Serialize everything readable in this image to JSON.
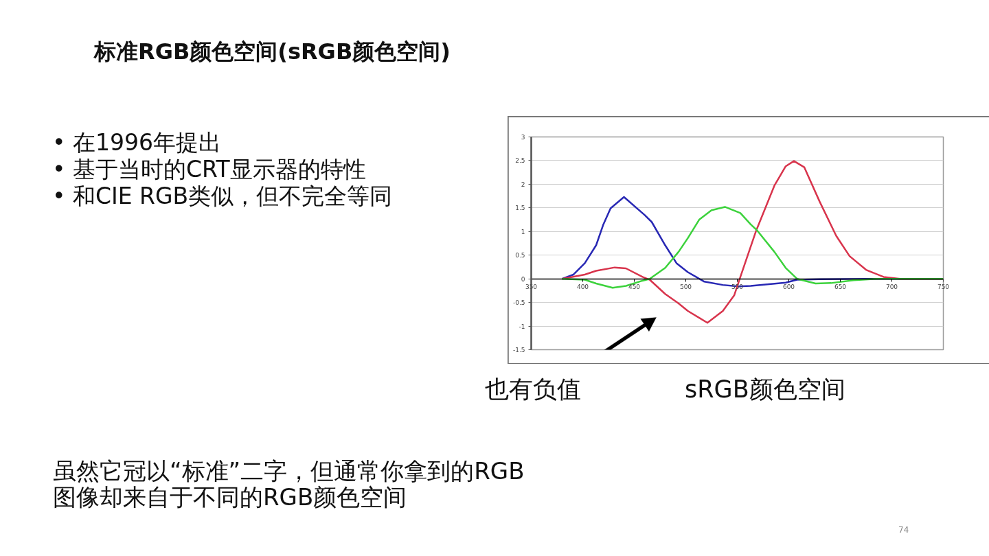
{
  "chart_data": {
    "type": "line",
    "title": "标准RGB颜色空间(sRGB颜色空间)",
    "xlim": [
      350,
      750
    ],
    "xticks": [
      350,
      400,
      450,
      500,
      550,
      600,
      650,
      700,
      750
    ],
    "ylim": [
      -1.5,
      3
    ],
    "yticks": [
      -1.5,
      -1,
      -0.5,
      0,
      0.5,
      1,
      1.5,
      2,
      2.5,
      3
    ],
    "grid": "y",
    "series": [
      {
        "color": "#2828b4",
        "x": [
          380,
          391,
          402,
          413,
          420,
          427,
          440,
          460,
          467,
          480,
          491,
          502,
          518,
          536,
          551,
          563,
          597,
          608,
          630,
          700,
          750
        ],
        "values": [
          0.0,
          0.09,
          0.33,
          0.71,
          1.15,
          1.49,
          1.73,
          1.35,
          1.2,
          0.71,
          0.33,
          0.14,
          -0.06,
          -0.13,
          -0.16,
          -0.15,
          -0.08,
          -0.02,
          -0.01,
          0.0,
          0.0
        ]
      },
      {
        "color": "#d8344c",
        "x": [
          380,
          402,
          413,
          431,
          442,
          458,
          465,
          480,
          493,
          502,
          521,
          536,
          547,
          553,
          568,
          586,
          597,
          605,
          615,
          630,
          646,
          659,
          675,
          692,
          708,
          750
        ],
        "values": [
          0.0,
          0.09,
          0.17,
          0.24,
          0.22,
          0.04,
          -0.02,
          -0.32,
          -0.52,
          -0.68,
          -0.93,
          -0.68,
          -0.35,
          0.04,
          1.0,
          1.97,
          2.38,
          2.49,
          2.36,
          1.63,
          0.91,
          0.48,
          0.19,
          0.04,
          0.0,
          0.0
        ]
      },
      {
        "color": "#3cd23c",
        "x": [
          380,
          402,
          413,
          429,
          442,
          458,
          465,
          480,
          493,
          502,
          513,
          525,
          538,
          553,
          563,
          569,
          586,
          597,
          608,
          626,
          641,
          663,
          686,
          750
        ],
        "values": [
          0.0,
          -0.02,
          -0.1,
          -0.19,
          -0.15,
          -0.04,
          0.0,
          0.23,
          0.57,
          0.86,
          1.25,
          1.45,
          1.52,
          1.39,
          1.15,
          1.03,
          0.57,
          0.23,
          0.0,
          -0.1,
          -0.09,
          -0.03,
          0.0,
          0.0
        ]
      }
    ],
    "annotations": [
      "• 在1996年提出",
      "• 基于当时的CRT显示器的特性",
      "• 和CIE RGB类似，但不完全等同",
      "也有负值",
      "sRGB颜色空间",
      "虽然它冠以“标准”二字，但通常你拿到的RGB\n图像却来自于不同的RGB颜色空间",
      "74"
    ]
  }
}
